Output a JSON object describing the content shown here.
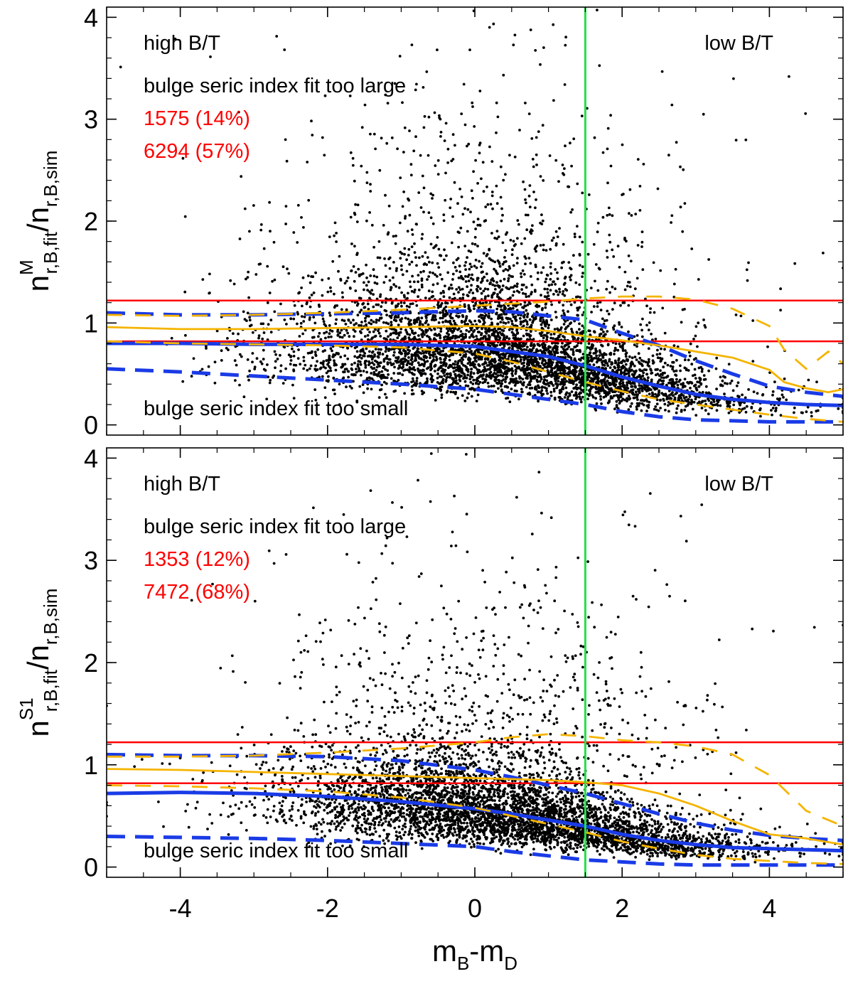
{
  "chart_data": [
    {
      "type": "scatter",
      "panel": "top",
      "ylabel": {
        "base": "n",
        "sup": "M",
        "sub": "r,B,fit",
        "slash": "/n",
        "sub2": "r,B,sim"
      },
      "xlabel": {
        "base": "m",
        "sub1": "B",
        "dash": "-m",
        "sub2": "D"
      },
      "xlim": [
        -5,
        5
      ],
      "ylim": [
        -0.1,
        4.1
      ],
      "xticks": [
        "-4",
        "-2",
        "0",
        "2",
        "4"
      ],
      "yticks": [
        "0",
        "1",
        "2",
        "3",
        "4"
      ],
      "annotations": {
        "left_label": "high B/T",
        "right_label": "low B/T",
        "upper_text": "bulge seric index fit too large",
        "lower_text": "bulge seric index fit too small",
        "count_high": "1575 (14%)",
        "count_low": "6294 (57%)"
      },
      "hlines": [
        1.22,
        0.82
      ],
      "vline": 1.5,
      "scatter_seed": 11,
      "series": [
        {
          "name": "blue-median",
          "color": "#1a3be6",
          "style": "solid",
          "x": [
            -5,
            -4,
            -3,
            -2,
            -1,
            0,
            0.5,
            1,
            1.5,
            2,
            2.5,
            3,
            3.5,
            4,
            4.5,
            5
          ],
          "y": [
            0.8,
            0.8,
            0.79,
            0.79,
            0.79,
            0.77,
            0.72,
            0.67,
            0.58,
            0.47,
            0.38,
            0.3,
            0.25,
            0.22,
            0.2,
            0.19
          ]
        },
        {
          "name": "blue-upper",
          "color": "#1a3be6",
          "style": "dashed",
          "x": [
            -5,
            -4,
            -3,
            -2,
            -1,
            0,
            0.5,
            1,
            1.5,
            2,
            2.5,
            3,
            3.5,
            4,
            4.5,
            5
          ],
          "y": [
            1.1,
            1.08,
            1.08,
            1.09,
            1.1,
            1.12,
            1.11,
            1.07,
            1.03,
            0.9,
            0.78,
            0.63,
            0.5,
            0.38,
            0.32,
            0.28
          ]
        },
        {
          "name": "blue-lower",
          "color": "#1a3be6",
          "style": "dashed",
          "x": [
            -5,
            -4,
            -3,
            -2,
            -1,
            0,
            0.5,
            1,
            1.5,
            2,
            2.5,
            3,
            3.5,
            4,
            4.5,
            5
          ],
          "y": [
            0.55,
            0.52,
            0.48,
            0.44,
            0.4,
            0.35,
            0.3,
            0.25,
            0.2,
            0.13,
            0.08,
            0.05,
            0.04,
            0.03,
            0.03,
            0.03
          ]
        },
        {
          "name": "orange-median",
          "color": "#f5b400",
          "style": "solid",
          "x": [
            -5,
            -4,
            -3,
            -2,
            -1,
            0,
            0.5,
            1,
            1.5,
            2,
            2.5,
            3,
            3.5,
            4,
            4.2,
            4.5,
            4.8,
            5
          ],
          "y": [
            0.96,
            0.94,
            0.94,
            0.95,
            0.96,
            0.97,
            0.96,
            0.92,
            0.87,
            0.83,
            0.78,
            0.72,
            0.66,
            0.54,
            0.42,
            0.36,
            0.32,
            0.35
          ]
        },
        {
          "name": "orange-upper",
          "color": "#f5b400",
          "style": "dashed",
          "x": [
            -5,
            -4,
            -3,
            -2,
            -1,
            0,
            0.5,
            1,
            1.5,
            2,
            2.5,
            3,
            3.5,
            4,
            4.2,
            4.5,
            4.8,
            5
          ],
          "y": [
            1.08,
            1.07,
            1.08,
            1.1,
            1.13,
            1.17,
            1.19,
            1.21,
            1.24,
            1.26,
            1.26,
            1.23,
            1.14,
            0.97,
            0.74,
            0.55,
            0.72,
            0.6
          ]
        },
        {
          "name": "orange-lower",
          "color": "#f5b400",
          "style": "dashed",
          "x": [
            -5,
            -4,
            -3,
            -2,
            -1,
            0,
            0.5,
            1,
            1.5,
            2,
            2.5,
            3,
            3.5,
            4,
            4.5,
            5
          ],
          "y": [
            0.82,
            0.8,
            0.79,
            0.78,
            0.76,
            0.7,
            0.62,
            0.52,
            0.42,
            0.33,
            0.25,
            0.2,
            0.15,
            0.1,
            0.06,
            0.03
          ]
        }
      ]
    },
    {
      "type": "scatter",
      "panel": "bottom",
      "ylabel": {
        "base": "n",
        "sup": "S1",
        "sub": "r,B,fit",
        "slash": "/n",
        "sub2": "r,B,sim"
      },
      "xlabel": {
        "base": "m",
        "sub1": "B",
        "dash": "-m",
        "sub2": "D"
      },
      "xlim": [
        -5,
        5
      ],
      "ylim": [
        -0.1,
        4.1
      ],
      "xticks": [
        "-4",
        "-2",
        "0",
        "2",
        "4"
      ],
      "yticks": [
        "0",
        "1",
        "2",
        "3",
        "4"
      ],
      "annotations": {
        "left_label": "high B/T",
        "right_label": "low B/T",
        "upper_text": "bulge seric index fit too large",
        "lower_text": "bulge seric index fit too small",
        "count_high": "1353 (12%)",
        "count_low": "7472 (68%)"
      },
      "hlines": [
        1.22,
        0.82
      ],
      "vline": 1.5,
      "scatter_seed": 29,
      "series": [
        {
          "name": "blue-median",
          "color": "#1a3be6",
          "style": "solid",
          "x": [
            -5,
            -4,
            -3,
            -2,
            -1,
            0,
            0.5,
            1,
            1.5,
            2,
            2.5,
            3,
            3.5,
            4,
            4.5,
            5
          ],
          "y": [
            0.72,
            0.73,
            0.72,
            0.69,
            0.64,
            0.57,
            0.52,
            0.46,
            0.4,
            0.32,
            0.26,
            0.22,
            0.19,
            0.18,
            0.17,
            0.16
          ]
        },
        {
          "name": "blue-upper",
          "color": "#1a3be6",
          "style": "dashed",
          "x": [
            -5,
            -4,
            -3,
            -2,
            -1,
            0,
            0.5,
            1,
            1.5,
            2,
            2.5,
            3,
            3.5,
            4,
            4.5,
            5
          ],
          "y": [
            1.1,
            1.09,
            1.09,
            1.08,
            1.04,
            0.95,
            0.88,
            0.8,
            0.72,
            0.62,
            0.52,
            0.43,
            0.36,
            0.31,
            0.28,
            0.26
          ]
        },
        {
          "name": "blue-lower",
          "color": "#1a3be6",
          "style": "dashed",
          "x": [
            -5,
            -4,
            -3,
            -2,
            -1,
            0,
            0.5,
            1,
            1.5,
            2,
            2.5,
            3,
            3.5,
            4,
            4.5,
            5
          ],
          "y": [
            0.3,
            0.29,
            0.28,
            0.26,
            0.23,
            0.2,
            0.15,
            0.11,
            0.07,
            0.05,
            0.03,
            0.02,
            0.02,
            0.02,
            0.02,
            0.02
          ]
        },
        {
          "name": "orange-median",
          "color": "#f5b400",
          "style": "solid",
          "x": [
            -5,
            -4,
            -3,
            -2,
            -1,
            0,
            0.5,
            1,
            1.5,
            2,
            2.5,
            3,
            3.5,
            4,
            4.5,
            5
          ],
          "y": [
            0.96,
            0.95,
            0.93,
            0.91,
            0.89,
            0.87,
            0.86,
            0.85,
            0.83,
            0.8,
            0.72,
            0.6,
            0.45,
            0.32,
            0.28,
            0.22
          ]
        },
        {
          "name": "orange-upper",
          "color": "#f5b400",
          "style": "dashed",
          "x": [
            -5,
            -4,
            -3,
            -2,
            -1,
            0,
            0.5,
            1,
            1.5,
            2,
            2.5,
            3,
            3.5,
            4,
            4.5,
            5
          ],
          "y": [
            1.08,
            1.08,
            1.09,
            1.12,
            1.16,
            1.22,
            1.27,
            1.3,
            1.28,
            1.24,
            1.22,
            1.18,
            1.1,
            0.9,
            0.55,
            0.4
          ]
        },
        {
          "name": "orange-lower",
          "color": "#f5b400",
          "style": "dashed",
          "x": [
            -5,
            -4,
            -3,
            -2,
            -1,
            0,
            0.5,
            1,
            1.5,
            2,
            2.5,
            3,
            3.5,
            4,
            4.5,
            5
          ],
          "y": [
            0.8,
            0.79,
            0.77,
            0.74,
            0.68,
            0.58,
            0.5,
            0.42,
            0.34,
            0.25,
            0.18,
            0.12,
            0.08,
            0.06,
            0.04,
            0.03
          ]
        }
      ]
    }
  ]
}
